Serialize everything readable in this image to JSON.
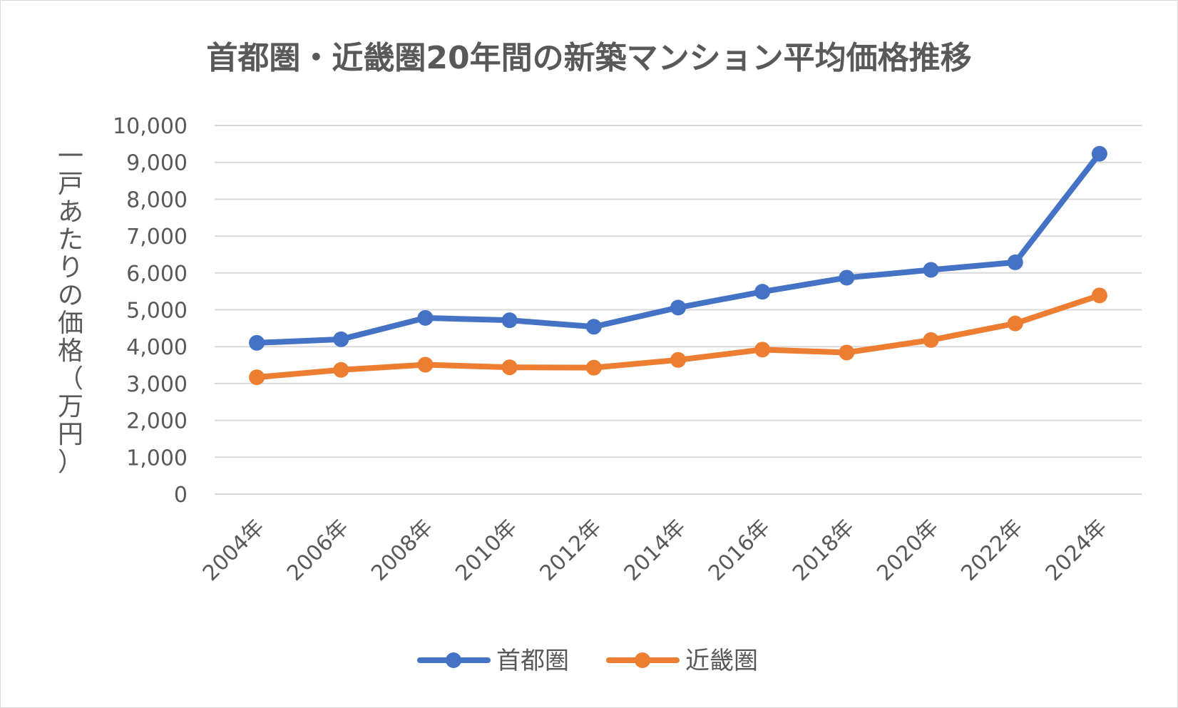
{
  "chart_data": {
    "type": "line",
    "title": "首都圏・近畿圏20年間の新築マンション平均価格推移",
    "ylabel": "一戸あたりの価格（万円）",
    "xlabel": "",
    "categories": [
      "2004年",
      "2006年",
      "2008年",
      "2010年",
      "2012年",
      "2014年",
      "2016年",
      "2018年",
      "2020年",
      "2022年",
      "2024年"
    ],
    "yticks": [
      "0",
      "1,000",
      "2,000",
      "3,000",
      "4,000",
      "5,000",
      "6,000",
      "7,000",
      "8,000",
      "9,000",
      "10,000"
    ],
    "ylim": [
      0,
      10000
    ],
    "grid": true,
    "legend_position": "bottom",
    "series": [
      {
        "name": "首都圏",
        "color": "#4472c4",
        "values": [
          4104,
          4200,
          4780,
          4716,
          4540,
          5060,
          5490,
          5871,
          6083,
          6288,
          9234
        ]
      },
      {
        "name": "近畿圏",
        "color": "#ed7d31",
        "values": [
          3170,
          3370,
          3510,
          3440,
          3430,
          3640,
          3920,
          3840,
          4180,
          4630,
          5390
        ]
      }
    ]
  }
}
